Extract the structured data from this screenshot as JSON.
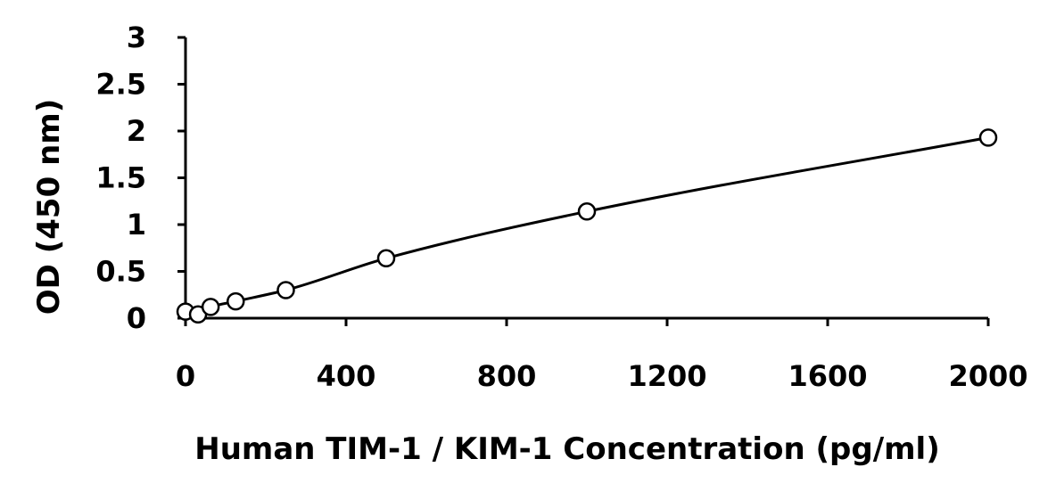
{
  "chart_data": {
    "type": "scatter",
    "xlabel": "Human TIM-1 / KIM-1 Concentration (pg/ml)",
    "ylabel": "OD (450 nm)",
    "xlim": [
      0,
      2000
    ],
    "ylim": [
      0,
      3
    ],
    "x_ticks": [
      "0",
      "400",
      "800",
      "1200",
      "1600",
      "2000"
    ],
    "y_ticks": [
      "0",
      "0.5",
      "1",
      "1.5",
      "2",
      "2.5",
      "3"
    ],
    "grid": false,
    "legend": "none",
    "trendline": "smooth curve through points",
    "series": [
      {
        "points": [
          {
            "x": 0,
            "y": 0.07
          },
          {
            "x": 31.25,
            "y": 0.04
          },
          {
            "x": 62.5,
            "y": 0.12
          },
          {
            "x": 125,
            "y": 0.18
          },
          {
            "x": 250,
            "y": 0.3
          },
          {
            "x": 500,
            "y": 0.64
          },
          {
            "x": 1000,
            "y": 1.14
          },
          {
            "x": 2000,
            "y": 1.93
          }
        ]
      }
    ]
  }
}
